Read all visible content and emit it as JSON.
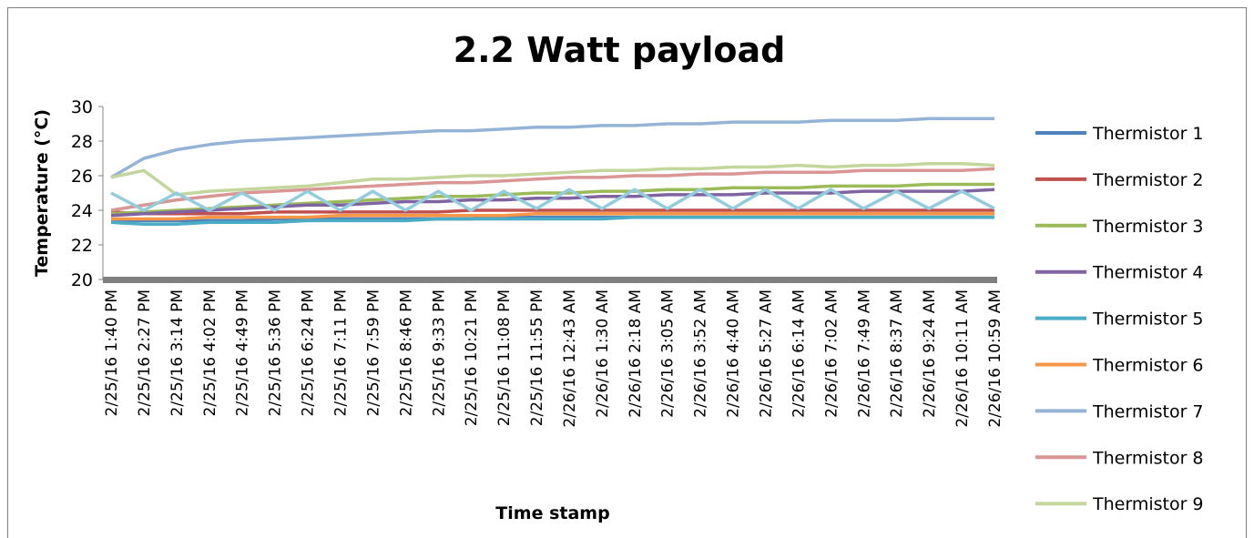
{
  "chart_data": {
    "type": "line",
    "title": "2.2 Watt payload",
    "x_label": "Time stamp",
    "y_label": "Temperature (°C)",
    "categories": [
      "2/25/16 1:40 PM",
      "2/25/16 2:27 PM",
      "2/25/16 3:14 PM",
      "2/25/16 4:02 PM",
      "2/25/16 4:49 PM",
      "2/25/16 5:36 PM",
      "2/25/16 6:24 PM",
      "2/25/16 7:11 PM",
      "2/25/16 7:59 PM",
      "2/25/16 8:46 PM",
      "2/25/16 9:33 PM",
      "2/25/16 10:21 PM",
      "2/25/16 11:08 PM",
      "2/25/16 11:55 PM",
      "2/26/16 12:43 AM",
      "2/26/16 1:30 AM",
      "2/26/16 2:18 AM",
      "2/26/16 3:05 AM",
      "2/26/16 3:52 AM",
      "2/26/16 4:40 AM",
      "2/26/16 5:27 AM",
      "2/26/16 6:14 AM",
      "2/26/16 7:02 AM",
      "2/26/16 7:49 AM",
      "2/26/16 8:37 AM",
      "2/26/16 9:24 AM",
      "2/26/16 10:11 AM",
      "2/26/16 10:59 AM"
    ],
    "ylim": [
      20,
      30
    ],
    "yticks": [
      20,
      22,
      24,
      26,
      28,
      30
    ],
    "legend": "right",
    "series": [
      {
        "name": "Thermistor 1",
        "color": "#4f81bd",
        "values": [
          23.4,
          23.4,
          23.4,
          23.4,
          23.4,
          23.5,
          23.5,
          23.5,
          23.5,
          23.5,
          23.5,
          23.5,
          23.6,
          23.6,
          23.6,
          23.6,
          23.6,
          23.6,
          23.6,
          23.6,
          23.6,
          23.6,
          23.6,
          23.6,
          23.6,
          23.6,
          23.6,
          23.6
        ]
      },
      {
        "name": "Thermistor 2",
        "color": "#c0504d",
        "values": [
          23.9,
          23.8,
          23.8,
          23.8,
          23.8,
          23.9,
          23.9,
          23.9,
          23.9,
          23.9,
          23.9,
          24.0,
          24.0,
          24.0,
          24.0,
          24.0,
          24.0,
          24.0,
          24.0,
          24.0,
          24.0,
          24.0,
          24.0,
          24.0,
          24.0,
          24.0,
          24.0,
          24.0
        ]
      },
      {
        "name": "Thermistor 3",
        "color": "#9bbb59",
        "values": [
          23.8,
          23.9,
          24.0,
          24.1,
          24.2,
          24.3,
          24.4,
          24.5,
          24.6,
          24.7,
          24.8,
          24.8,
          24.9,
          25.0,
          25.0,
          25.1,
          25.1,
          25.2,
          25.2,
          25.3,
          25.3,
          25.3,
          25.4,
          25.4,
          25.4,
          25.5,
          25.5,
          25.5
        ]
      },
      {
        "name": "Thermistor 4",
        "color": "#8064a2",
        "values": [
          23.7,
          23.8,
          23.9,
          24.0,
          24.1,
          24.2,
          24.3,
          24.3,
          24.4,
          24.5,
          24.5,
          24.6,
          24.6,
          24.7,
          24.7,
          24.8,
          24.8,
          24.9,
          24.9,
          24.9,
          25.0,
          25.0,
          25.0,
          25.1,
          25.1,
          25.1,
          25.1,
          25.2
        ]
      },
      {
        "name": "Thermistor 5",
        "color": "#4bacc6",
        "values": [
          23.3,
          23.2,
          23.2,
          23.3,
          23.3,
          23.3,
          23.4,
          23.4,
          23.4,
          23.4,
          23.5,
          23.5,
          23.5,
          23.5,
          23.5,
          23.5,
          23.6,
          23.6,
          23.6,
          23.6,
          23.6,
          23.6,
          23.6,
          23.6,
          23.6,
          23.6,
          23.6,
          23.6
        ]
      },
      {
        "name": "Thermistor 6",
        "color": "#f79646",
        "values": [
          23.5,
          23.5,
          23.5,
          23.6,
          23.6,
          23.6,
          23.6,
          23.7,
          23.7,
          23.7,
          23.7,
          23.7,
          23.7,
          23.8,
          23.8,
          23.8,
          23.8,
          23.8,
          23.8,
          23.8,
          23.8,
          23.8,
          23.8,
          23.8,
          23.8,
          23.8,
          23.8,
          23.8
        ]
      },
      {
        "name": "Thermistor 7",
        "color": "#95b3d7",
        "values": [
          25.9,
          27.0,
          27.5,
          27.8,
          28.0,
          28.1,
          28.2,
          28.3,
          28.4,
          28.5,
          28.6,
          28.6,
          28.7,
          28.8,
          28.8,
          28.9,
          28.9,
          29.0,
          29.0,
          29.1,
          29.1,
          29.1,
          29.2,
          29.2,
          29.2,
          29.3,
          29.3,
          29.3
        ]
      },
      {
        "name": "Thermistor 8",
        "color": "#d99694",
        "values": [
          24.0,
          24.3,
          24.6,
          24.8,
          25.0,
          25.1,
          25.2,
          25.3,
          25.4,
          25.5,
          25.6,
          25.6,
          25.7,
          25.8,
          25.9,
          25.9,
          26.0,
          26.0,
          26.1,
          26.1,
          26.2,
          26.2,
          26.2,
          26.3,
          26.3,
          26.3,
          26.3,
          26.4
        ]
      },
      {
        "name": "Thermistor 9",
        "color": "#c3d69b",
        "values": [
          25.9,
          26.3,
          24.9,
          25.1,
          25.2,
          25.3,
          25.4,
          25.6,
          25.8,
          25.8,
          25.9,
          26.0,
          26.0,
          26.1,
          26.2,
          26.3,
          26.3,
          26.4,
          26.4,
          26.5,
          26.5,
          26.6,
          26.5,
          26.6,
          26.6,
          26.7,
          26.7,
          26.6
        ]
      },
      {
        "color": "#93cddd",
        "values": [
          25.0,
          24.0,
          25.0,
          24.0,
          25.0,
          24.0,
          25.1,
          24.0,
          25.1,
          24.0,
          25.1,
          24.0,
          25.1,
          24.1,
          25.2,
          24.1,
          25.2,
          24.1,
          25.2,
          24.1,
          25.2,
          24.1,
          25.2,
          24.1,
          25.1,
          24.1,
          25.1,
          24.1
        ]
      }
    ]
  }
}
